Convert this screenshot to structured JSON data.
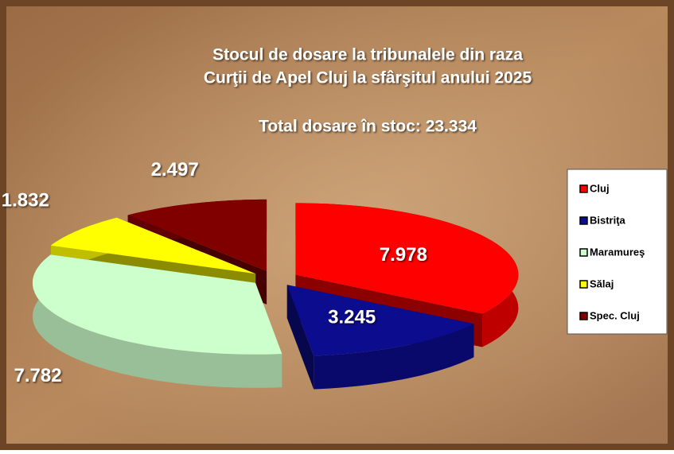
{
  "chart_data": {
    "type": "pie3d",
    "title": [
      "Stocul de dosare la tribunalele din raza",
      "Curţii de Apel Cluj la sfârşitul anului 2025"
    ],
    "subtitle": "Total dosare în stoc: 23.334",
    "categories": [
      "Cluj",
      "Bistriţa",
      "Maramureş",
      "Sălaj",
      "Spec. Cluj"
    ],
    "values": [
      7978,
      3245,
      7782,
      1832,
      2497
    ],
    "value_labels": [
      "7.978",
      "3.245",
      "7.782",
      "1.832",
      "2.497"
    ],
    "colors": [
      "#ff0000",
      "#0c0c8e",
      "#ccffcc",
      "#ffff00",
      "#800000"
    ],
    "legend": "right"
  }
}
